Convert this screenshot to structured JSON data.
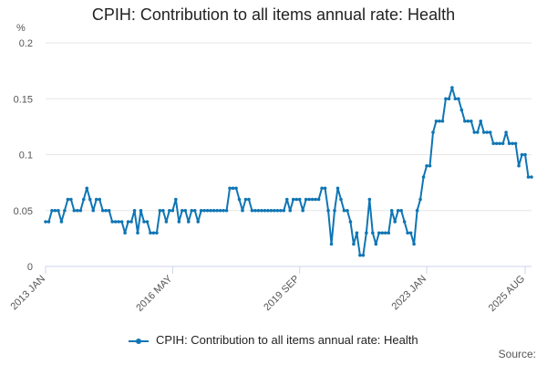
{
  "title": "CPIH: Contribution to all items annual rate: Health",
  "colors": {
    "series": "#0f75b4",
    "grid": "#e6e6e6",
    "axis": "#ccd6eb"
  },
  "legend": {
    "label": "CPIH: Contribution to all items annual rate: Health"
  },
  "source_label": "Source:",
  "chart_data": {
    "type": "line",
    "title": "CPIH: Contribution to all items annual rate: Health",
    "ylabel": "%",
    "ylim": [
      0,
      0.2
    ],
    "yticks": [
      "0",
      "0.05",
      "0.1",
      "0.15",
      "0.2"
    ],
    "yticks_values": [
      0,
      0.05,
      0.1,
      0.15,
      0.2
    ],
    "grid": true,
    "legend_position": "bottom",
    "x_start": "2013 JAN",
    "x_end": "2025 AUG",
    "xtick_labels": [
      "2013 JAN",
      "2016 MAY",
      "2019 SEP",
      "2023 JAN",
      "2025 AUG"
    ],
    "series": [
      {
        "name": "CPIH: Contribution to all items annual rate: Health",
        "values": [
          0.04,
          0.04,
          0.05,
          0.05,
          0.05,
          0.04,
          0.05,
          0.06,
          0.06,
          0.05,
          0.05,
          0.05,
          0.06,
          0.07,
          0.06,
          0.05,
          0.06,
          0.06,
          0.05,
          0.05,
          0.05,
          0.04,
          0.04,
          0.04,
          0.04,
          0.03,
          0.04,
          0.04,
          0.05,
          0.03,
          0.05,
          0.04,
          0.04,
          0.03,
          0.03,
          0.03,
          0.05,
          0.05,
          0.04,
          0.05,
          0.05,
          0.06,
          0.04,
          0.05,
          0.05,
          0.04,
          0.05,
          0.05,
          0.04,
          0.05,
          0.05,
          0.05,
          0.05,
          0.05,
          0.05,
          0.05,
          0.05,
          0.05,
          0.07,
          0.07,
          0.07,
          0.06,
          0.05,
          0.06,
          0.06,
          0.05,
          0.05,
          0.05,
          0.05,
          0.05,
          0.05,
          0.05,
          0.05,
          0.05,
          0.05,
          0.05,
          0.06,
          0.05,
          0.06,
          0.06,
          0.06,
          0.05,
          0.06,
          0.06,
          0.06,
          0.06,
          0.06,
          0.07,
          0.07,
          0.05,
          0.02,
          0.05,
          0.07,
          0.06,
          0.05,
          0.05,
          0.04,
          0.02,
          0.03,
          0.01,
          0.01,
          0.03,
          0.06,
          0.03,
          0.02,
          0.03,
          0.03,
          0.03,
          0.03,
          0.05,
          0.04,
          0.05,
          0.05,
          0.04,
          0.03,
          0.03,
          0.02,
          0.05,
          0.06,
          0.08,
          0.09,
          0.09,
          0.12,
          0.13,
          0.13,
          0.13,
          0.15,
          0.15,
          0.16,
          0.15,
          0.15,
          0.14,
          0.13,
          0.13,
          0.13,
          0.12,
          0.12,
          0.13,
          0.12,
          0.12,
          0.12,
          0.11,
          0.11,
          0.11,
          0.11,
          0.12,
          0.11,
          0.11,
          0.11,
          0.09,
          0.1,
          0.1,
          0.08,
          0.08
        ]
      }
    ]
  }
}
